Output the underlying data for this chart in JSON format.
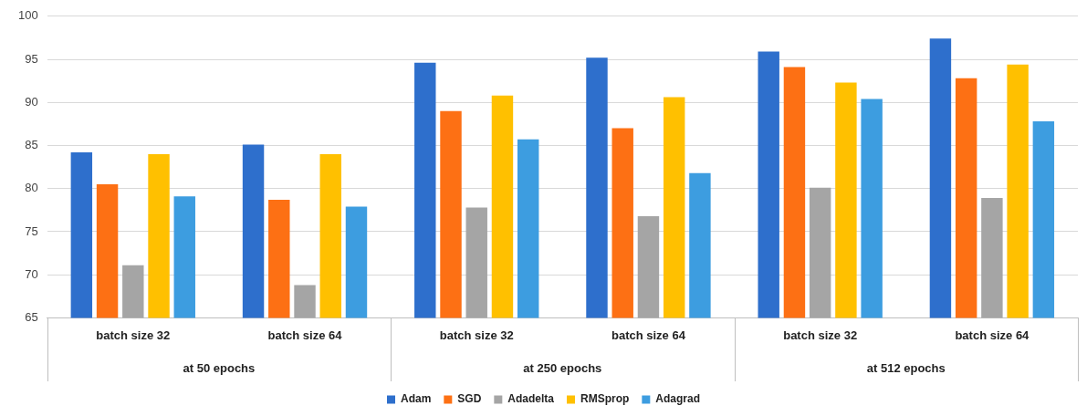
{
  "chart_data": {
    "type": "bar",
    "categories": [
      "batch size 32",
      "batch size 64",
      "batch size 32",
      "batch size 64",
      "batch size 32",
      "batch size 64"
    ],
    "series": [
      {
        "name": "Adam",
        "color": "#2e6fcc",
        "values": [
          84.2,
          85.1,
          94.6,
          95.2,
          95.9,
          97.4
        ]
      },
      {
        "name": "SGD",
        "color": "#fd7014",
        "values": [
          80.5,
          78.7,
          89.0,
          87.0,
          94.1,
          92.8
        ]
      },
      {
        "name": "Adadelta",
        "color": "#a5a5a5",
        "values": [
          71.1,
          68.8,
          77.8,
          76.8,
          80.1,
          78.9
        ]
      },
      {
        "name": "RMSprop",
        "color": "#ffc000",
        "values": [
          84.0,
          84.0,
          90.8,
          90.6,
          92.3,
          94.4
        ]
      },
      {
        "name": "Adagrad",
        "color": "#3d9de0",
        "values": [
          79.1,
          77.9,
          85.7,
          81.8,
          90.4,
          87.8
        ]
      }
    ],
    "annotations": [
      "at 50 epochs",
      "at 250 epochs",
      "at 512 epochs"
    ],
    "ylim": [
      65,
      100
    ],
    "yticks": [
      65,
      70,
      75,
      80,
      85,
      90,
      95,
      100
    ],
    "grid": "y",
    "legend": "bottom"
  }
}
